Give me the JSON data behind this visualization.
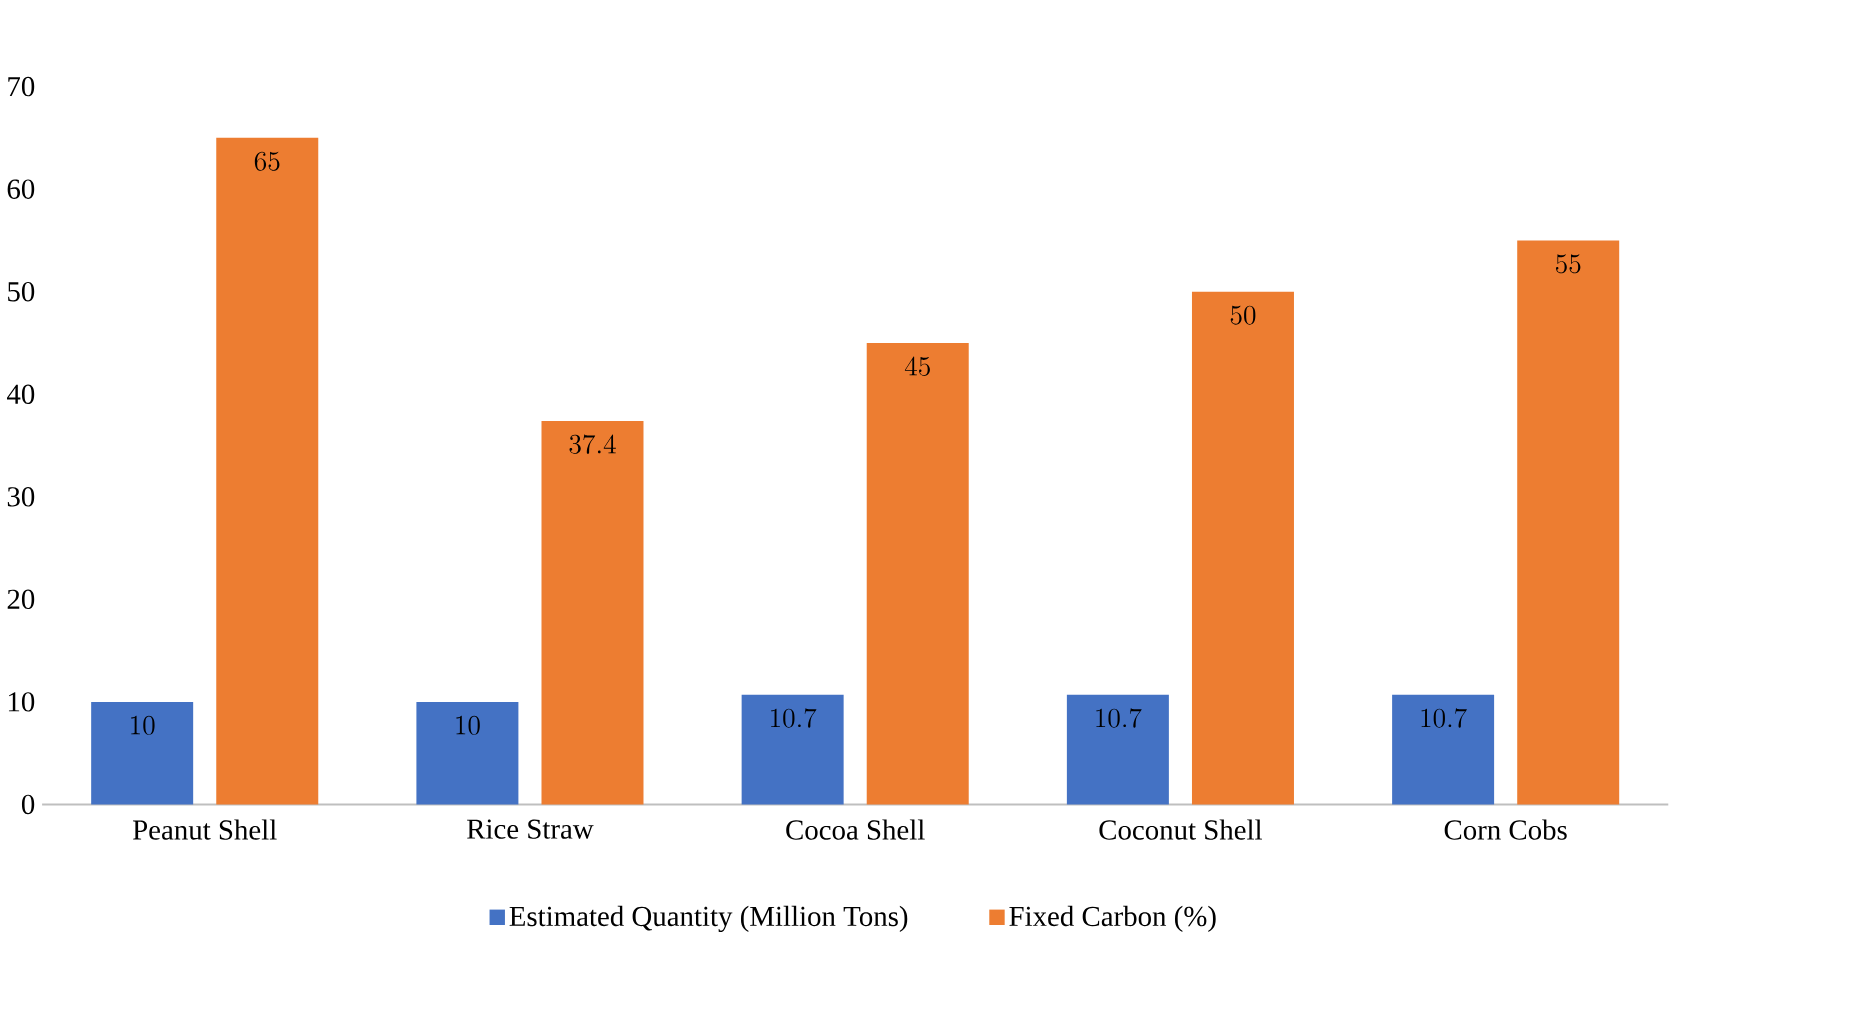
{
  "chart_data": {
    "type": "bar",
    "categories": [
      "Peanut Shell",
      "Rice Straw",
      "Cocoa Shell",
      "Coconut Shell",
      "Corn Cobs"
    ],
    "series": [
      {
        "name": "Estimated Quantity (Million Tons)",
        "color": "#4472c4",
        "values": [
          10,
          10,
          10.7,
          10.7,
          10.7
        ]
      },
      {
        "name": "Fixed Carbon (%)",
        "color": "#ed7d31",
        "values": [
          65,
          37.4,
          45,
          50,
          55
        ]
      }
    ],
    "ylim": [
      0,
      70
    ],
    "yticks": [
      0,
      10,
      20,
      30,
      40,
      50,
      60,
      70
    ],
    "grid": false,
    "legend": "bottom",
    "data_labels": true
  }
}
